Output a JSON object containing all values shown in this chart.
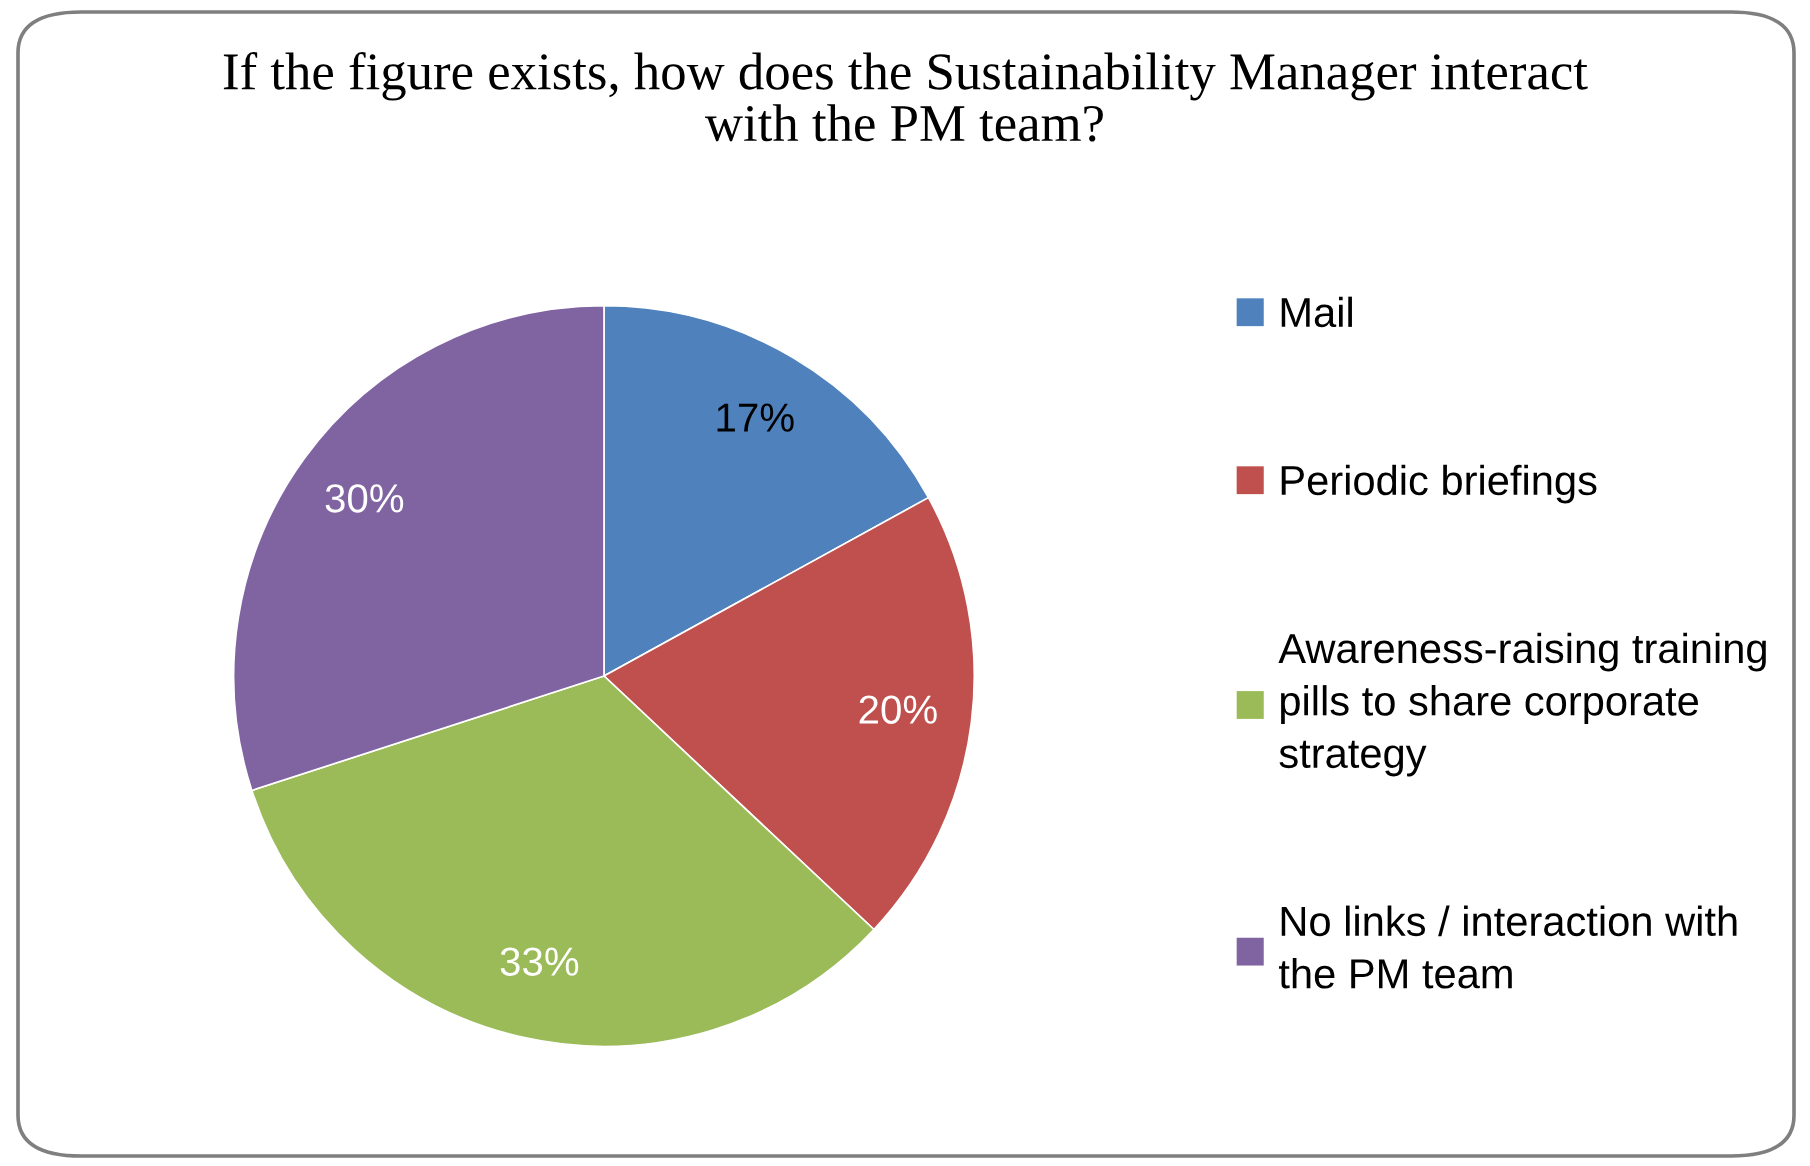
{
  "chart_data": {
    "type": "pie",
    "title": "If the figure exists, how does the Sustainability Manager interact with the PM team?",
    "categories": [
      "Mail",
      "Periodic briefings",
      "Awareness-raising training pills to share corporate strategy",
      "No links / interaction with the PM team"
    ],
    "values": [
      17,
      20,
      33,
      30
    ],
    "colors": [
      "#4f81bd",
      "#c0504d",
      "#9bbb59",
      "#8064a2"
    ],
    "value_labels": [
      "17%",
      "20%",
      "33%",
      "30%"
    ],
    "legend": "right"
  }
}
